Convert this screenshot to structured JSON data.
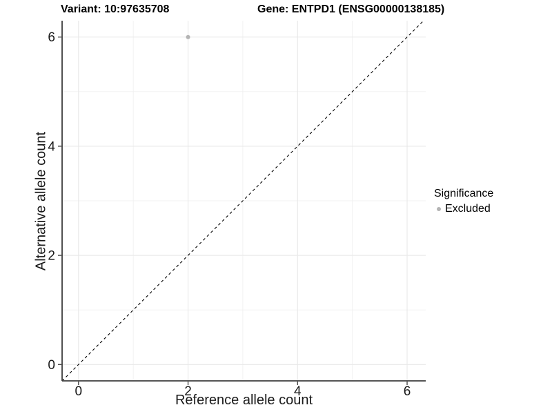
{
  "chart_data": {
    "type": "scatter",
    "title_variant": "Variant: 10:97635708",
    "title_gene": "Gene: ENTPD1 (ENSG00000138185)",
    "xlabel": "Reference allele count",
    "ylabel": "Alternative allele count",
    "xlim": [
      -0.3,
      6.34
    ],
    "ylim": [
      -0.3,
      6.3
    ],
    "xticks": [
      0,
      2,
      4,
      6
    ],
    "yticks": [
      0,
      2,
      4,
      6
    ],
    "xminor": [
      1,
      3,
      5
    ],
    "yminor": [
      1,
      3,
      5
    ],
    "grid": true,
    "points": [
      {
        "x": 2,
        "y": 6,
        "significance": "Excluded"
      }
    ],
    "reference_line": {
      "slope": 1,
      "intercept": 0,
      "style": "dashed"
    },
    "legend": {
      "title": "Significance",
      "position": "right",
      "entries": [
        {
          "label": "Excluded",
          "color": "#b4b4b4"
        }
      ]
    },
    "colors": {
      "point": "#b4b4b4",
      "grid_major": "#e8e8e8",
      "grid_minor": "#f0f0f0",
      "axis_line": "#3c3c3c",
      "tick_text": "#1a1a1a",
      "dashed_line": "#000000",
      "background": "#ffffff"
    }
  }
}
